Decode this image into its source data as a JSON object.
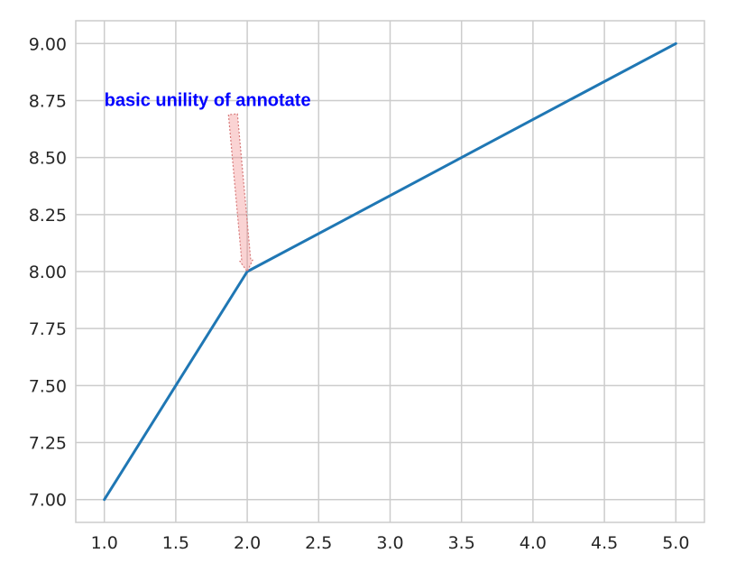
{
  "chart_data": {
    "type": "line",
    "title": "",
    "xlabel": "",
    "ylabel": "",
    "x": [
      1,
      2,
      3,
      4,
      5
    ],
    "series": [
      {
        "values": [
          7,
          8,
          8.333,
          8.667,
          9
        ],
        "color": "#1f77b4"
      }
    ],
    "xlim": [
      0.8,
      5.2
    ],
    "ylim": [
      6.9,
      9.1
    ],
    "xticks": [
      1.0,
      1.5,
      2.0,
      2.5,
      3.0,
      3.5,
      4.0,
      4.5,
      5.0
    ],
    "xtick_labels": [
      "1.0",
      "1.5",
      "2.0",
      "2.5",
      "3.0",
      "3.5",
      "4.0",
      "4.5",
      "5.0"
    ],
    "yticks": [
      7.0,
      7.25,
      7.5,
      7.75,
      8.0,
      8.25,
      8.5,
      8.75,
      9.0
    ],
    "ytick_labels": [
      "7.00",
      "7.25",
      "7.50",
      "7.75",
      "8.00",
      "8.25",
      "8.50",
      "8.75",
      "9.00"
    ],
    "grid": true,
    "annotation": {
      "text": "basic unility of annotate",
      "text_color": "#0000ff",
      "text_xy": [
        1.0,
        8.75
      ],
      "arrow_tail": [
        1.9,
        8.69
      ],
      "arrow_head": [
        2.0,
        8.0
      ],
      "arrow_color": "#f08080"
    }
  }
}
